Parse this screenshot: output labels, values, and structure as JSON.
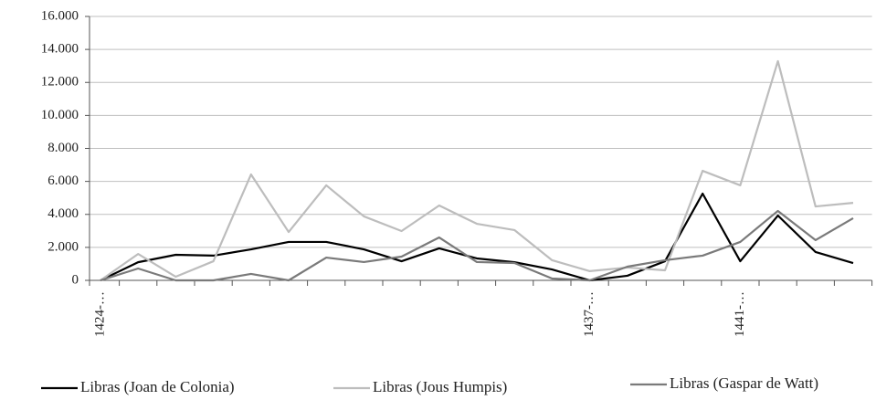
{
  "chart_data": {
    "type": "line",
    "categories": [
      "1424-…",
      null,
      null,
      null,
      null,
      null,
      null,
      null,
      null,
      null,
      null,
      null,
      null,
      "1437-…",
      null,
      null,
      null,
      "1441-…",
      null,
      null,
      null
    ],
    "series": [
      {
        "name": "Libras (Joan de Colonia)",
        "color": "#000000",
        "values": [
          0,
          1100,
          1550,
          1500,
          1880,
          2330,
          2330,
          1880,
          1160,
          1940,
          1330,
          1100,
          660,
          0,
          280,
          1160,
          5260,
          1160,
          3930,
          1720,
          1050
        ]
      },
      {
        "name": "Libras (Jous Humpis)",
        "color": "#bdbdbd",
        "values": [
          0,
          1600,
          220,
          1160,
          6420,
          2930,
          5760,
          3880,
          2990,
          4540,
          3430,
          3050,
          1220,
          560,
          780,
          610,
          6640,
          5760,
          13290,
          4480,
          4700
        ]
      },
      {
        "name": "Libras (Gaspar de Watt)",
        "color": "#7a7a7a",
        "values": [
          0,
          720,
          0,
          0,
          390,
          0,
          1380,
          1110,
          1440,
          2600,
          1110,
          1050,
          110,
          0,
          830,
          1220,
          1500,
          2330,
          4210,
          2440,
          3770
        ]
      }
    ],
    "ylim": [
      0,
      16000
    ],
    "yticks": [
      0,
      {
        "value": 2000,
        "label": "2.000"
      },
      {
        "value": 4000,
        "label": "4.000"
      },
      {
        "value": 6000,
        "label": "6.000"
      },
      {
        "value": 8000,
        "label": "8.000"
      },
      {
        "value": 10000,
        "label": "10.000"
      },
      {
        "value": 12000,
        "label": "12.000"
      },
      {
        "value": 14000,
        "label": "14.000"
      },
      {
        "value": 16000,
        "label": "16.000"
      }
    ],
    "grid": true,
    "legend": "bottom"
  }
}
